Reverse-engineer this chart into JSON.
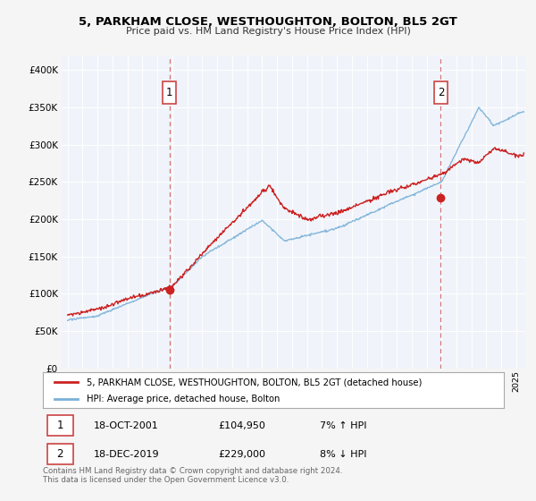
{
  "title": "5, PARKHAM CLOSE, WESTHOUGHTON, BOLTON, BL5 2GT",
  "subtitle": "Price paid vs. HM Land Registry's House Price Index (HPI)",
  "plot_bg_color": "#f0f4fa",
  "fig_bg_color": "#f5f5f5",
  "ylim": [
    0,
    420000
  ],
  "yticks": [
    0,
    50000,
    100000,
    150000,
    200000,
    250000,
    300000,
    350000,
    400000
  ],
  "ytick_labels": [
    "£0",
    "£50K",
    "£100K",
    "£150K",
    "£200K",
    "£250K",
    "£300K",
    "£350K",
    "£400K"
  ],
  "sale1_date_num": 2001.8,
  "sale1_price": 104950,
  "sale1_label": "1",
  "sale1_date_str": "18-OCT-2001",
  "sale1_price_str": "£104,950",
  "sale1_hpi_str": "7% ↑ HPI",
  "sale2_date_num": 2019.95,
  "sale2_price": 229000,
  "sale2_label": "2",
  "sale2_date_str": "18-DEC-2019",
  "sale2_price_str": "£229,000",
  "sale2_hpi_str": "8% ↓ HPI",
  "legend_label1": "5, PARKHAM CLOSE, WESTHOUGHTON, BOLTON, BL5 2GT (detached house)",
  "legend_label2": "HPI: Average price, detached house, Bolton",
  "footer": "Contains HM Land Registry data © Crown copyright and database right 2024.\nThis data is licensed under the Open Government Licence v3.0.",
  "hpi_color": "#7ab0d8",
  "price_color": "#cc2222",
  "vline_color": "#cc4444",
  "marker_color": "#cc2222",
  "grid_color": "#ffffff"
}
